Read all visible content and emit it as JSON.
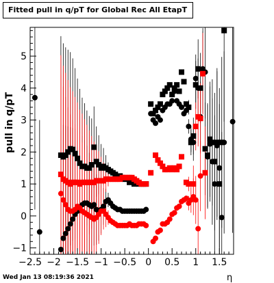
{
  "title": "Fitted pull in q/pT for Global Rec All EtapT",
  "ylabel": "pull in q/pT",
  "xlabel": "η",
  "timestamp": "Wed Jan 13 08:19:36 2021",
  "chart_data": {
    "type": "scatter",
    "xlim": [
      -2.5,
      1.8
    ],
    "ylim": [
      -1.2,
      5.9
    ],
    "grid": false,
    "xticks": [
      -2.5,
      -2,
      -1.5,
      -1,
      -0.5,
      0,
      0.5,
      1,
      1.5
    ],
    "xtick_labels": [
      "−2.5",
      "−2",
      "−1.5",
      "−1",
      "−0.5",
      "0",
      "0.5",
      "1",
      "1.5"
    ],
    "yticks": [
      -1,
      0,
      1,
      2,
      3,
      4,
      5
    ],
    "ytick_labels": [
      "−1",
      "0",
      "1",
      "2",
      "3",
      "4",
      "5"
    ],
    "series": [
      {
        "marker": "square",
        "color": "#000000",
        "points": [
          [
            -1.85,
            1.9
          ],
          [
            -1.8,
            1.85
          ],
          [
            -1.75,
            1.9
          ],
          [
            -1.7,
            2.0
          ],
          [
            -1.65,
            2.1
          ],
          [
            -1.6,
            2.08
          ],
          [
            -1.55,
            1.95
          ],
          [
            -1.5,
            1.8
          ],
          [
            -1.45,
            1.65
          ],
          [
            -1.4,
            1.55
          ],
          [
            -1.35,
            1.55
          ],
          [
            -1.3,
            1.5
          ],
          [
            -1.25,
            1.5
          ],
          [
            -1.2,
            1.6
          ],
          [
            -1.15,
            2.15
          ],
          [
            -1.1,
            1.7
          ],
          [
            -1.05,
            1.6
          ],
          [
            -1.0,
            1.5
          ],
          [
            -0.95,
            1.55
          ],
          [
            -0.9,
            1.5
          ],
          [
            -0.85,
            1.45
          ],
          [
            -0.8,
            1.4
          ],
          [
            -0.75,
            1.35
          ],
          [
            -0.7,
            1.3
          ],
          [
            -0.65,
            1.2
          ],
          [
            -0.6,
            1.25
          ],
          [
            -0.55,
            1.2
          ],
          [
            -0.5,
            1.15
          ],
          [
            -0.45,
            1.15
          ],
          [
            -0.4,
            1.05
          ],
          [
            -0.35,
            1.1
          ],
          [
            -0.3,
            1.0
          ],
          [
            -0.25,
            1.05
          ],
          [
            -0.2,
            1.0
          ],
          [
            -0.15,
            1.0
          ],
          [
            -0.1,
            1.0
          ],
          [
            -0.05,
            1.0
          ],
          [
            0.05,
            3.5
          ],
          [
            0.1,
            3.2
          ],
          [
            0.15,
            3.3
          ],
          [
            0.2,
            3.4
          ],
          [
            0.25,
            3.5
          ],
          [
            0.3,
            3.8
          ],
          [
            0.35,
            3.9
          ],
          [
            0.4,
            4.0
          ],
          [
            0.45,
            4.1
          ],
          [
            0.5,
            3.8
          ],
          [
            0.55,
            4.0
          ],
          [
            0.6,
            4.1
          ],
          [
            0.65,
            3.9
          ],
          [
            0.7,
            4.5
          ],
          [
            0.75,
            4.2
          ],
          [
            0.8,
            3.5
          ],
          [
            0.85,
            3.4
          ],
          [
            0.9,
            2.3
          ],
          [
            0.95,
            2.5
          ],
          [
            1.0,
            4.1
          ],
          [
            1.05,
            4.6
          ],
          [
            1.1,
            4.0
          ],
          [
            1.15,
            4.5
          ],
          [
            1.2,
            2.1
          ],
          [
            1.25,
            1.9
          ],
          [
            1.3,
            2.4
          ],
          [
            1.35,
            2.3
          ],
          [
            1.4,
            1.7
          ],
          [
            1.45,
            2.3
          ],
          [
            1.5,
            1.0
          ],
          [
            1.55,
            2.3
          ],
          [
            1.6,
            5.8
          ]
        ]
      },
      {
        "marker": "circle",
        "color": "#000000",
        "points": [
          [
            -2.4,
            3.7
          ],
          [
            -2.3,
            -0.5
          ],
          [
            -1.85,
            -1.05
          ],
          [
            -1.8,
            -0.7
          ],
          [
            -1.75,
            -0.55
          ],
          [
            -1.7,
            -0.4
          ],
          [
            -1.65,
            -0.25
          ],
          [
            -1.6,
            -0.1
          ],
          [
            -1.55,
            0.05
          ],
          [
            -1.5,
            0.15
          ],
          [
            -1.45,
            0.25
          ],
          [
            -1.4,
            0.35
          ],
          [
            -1.35,
            0.4
          ],
          [
            -1.3,
            0.4
          ],
          [
            -1.25,
            0.35
          ],
          [
            -1.2,
            0.3
          ],
          [
            -1.15,
            0.35
          ],
          [
            -1.1,
            0.2
          ],
          [
            -1.05,
            0.15
          ],
          [
            -1.0,
            0.2
          ],
          [
            -0.95,
            0.3
          ],
          [
            -0.9,
            0.45
          ],
          [
            -0.85,
            0.5
          ],
          [
            -0.8,
            0.4
          ],
          [
            -0.75,
            0.3
          ],
          [
            -0.7,
            0.25
          ],
          [
            -0.65,
            0.2
          ],
          [
            -0.6,
            0.2
          ],
          [
            -0.55,
            0.15
          ],
          [
            -0.5,
            0.15
          ],
          [
            -0.45,
            0.15
          ],
          [
            -0.4,
            0.15
          ],
          [
            -0.35,
            0.15
          ],
          [
            -0.3,
            0.15
          ],
          [
            -0.25,
            0.15
          ],
          [
            -0.2,
            0.15
          ],
          [
            -0.15,
            0.15
          ],
          [
            -0.1,
            0.15
          ],
          [
            -0.05,
            0.2
          ],
          [
            0.05,
            3.2
          ],
          [
            0.1,
            3.0
          ],
          [
            0.15,
            2.9
          ],
          [
            0.2,
            3.1
          ],
          [
            0.25,
            3.0
          ],
          [
            0.3,
            3.3
          ],
          [
            0.35,
            3.4
          ],
          [
            0.4,
            3.5
          ],
          [
            0.45,
            3.5
          ],
          [
            0.5,
            3.6
          ],
          [
            0.55,
            3.9
          ],
          [
            0.6,
            3.6
          ],
          [
            0.65,
            3.5
          ],
          [
            0.7,
            3.4
          ],
          [
            0.75,
            3.2
          ],
          [
            0.8,
            3.3
          ],
          [
            0.85,
            2.8
          ],
          [
            0.9,
            2.4
          ],
          [
            0.95,
            2.3
          ],
          [
            1.0,
            4.3
          ],
          [
            1.05,
            4.0
          ],
          [
            1.1,
            3.1
          ],
          [
            1.15,
            4.6
          ],
          [
            1.2,
            4.5
          ],
          [
            1.25,
            1.85
          ],
          [
            1.3,
            2.25
          ],
          [
            1.35,
            1.7
          ],
          [
            1.4,
            1.0
          ],
          [
            1.45,
            2.2
          ],
          [
            1.5,
            1.5
          ],
          [
            1.55,
            -0.05
          ],
          [
            1.6,
            2.3
          ],
          [
            1.78,
            2.95
          ]
        ]
      },
      {
        "marker": "square",
        "color": "#ff0000",
        "points": [
          [
            -1.85,
            1.3
          ],
          [
            -1.8,
            1.15
          ],
          [
            -1.75,
            1.1
          ],
          [
            -1.7,
            1.05
          ],
          [
            -1.65,
            1.0
          ],
          [
            -1.6,
            1.05
          ],
          [
            -1.55,
            1.05
          ],
          [
            -1.5,
            1.05
          ],
          [
            -1.45,
            1.0
          ],
          [
            -1.4,
            1.05
          ],
          [
            -1.35,
            1.05
          ],
          [
            -1.3,
            1.05
          ],
          [
            -1.25,
            1.05
          ],
          [
            -1.2,
            1.05
          ],
          [
            -1.15,
            1.05
          ],
          [
            -1.1,
            1.1
          ],
          [
            -1.05,
            1.1
          ],
          [
            -1.0,
            1.1
          ],
          [
            -0.95,
            1.1
          ],
          [
            -0.9,
            1.15
          ],
          [
            -0.85,
            1.15
          ],
          [
            -0.8,
            1.15
          ],
          [
            -0.75,
            1.15
          ],
          [
            -0.7,
            1.15
          ],
          [
            -0.65,
            1.15
          ],
          [
            -0.6,
            1.15
          ],
          [
            -0.55,
            1.2
          ],
          [
            -0.5,
            1.2
          ],
          [
            -0.45,
            1.2
          ],
          [
            -0.4,
            1.2
          ],
          [
            -0.35,
            1.2
          ],
          [
            -0.3,
            1.15
          ],
          [
            -0.25,
            1.1
          ],
          [
            -0.2,
            1.05
          ],
          [
            -0.15,
            1.0
          ],
          [
            -0.1,
            1.0
          ],
          [
            -0.05,
            1.0
          ],
          [
            0.05,
            1.35
          ],
          [
            0.15,
            1.9
          ],
          [
            0.2,
            1.75
          ],
          [
            0.25,
            1.65
          ],
          [
            0.3,
            1.55
          ],
          [
            0.35,
            1.45
          ],
          [
            0.4,
            1.45
          ],
          [
            0.45,
            1.5
          ],
          [
            0.5,
            1.45
          ],
          [
            0.55,
            1.5
          ],
          [
            0.6,
            1.45
          ],
          [
            0.65,
            1.55
          ],
          [
            0.7,
            1.85
          ],
          [
            0.8,
            1.05
          ],
          [
            0.85,
            1.0
          ],
          [
            0.95,
            1.0
          ],
          [
            1.0,
            2.8
          ],
          [
            1.05,
            3.1
          ],
          [
            1.1,
            3.05
          ],
          [
            1.15,
            4.45
          ],
          [
            1.2,
            1.35
          ]
        ]
      },
      {
        "marker": "circle",
        "color": "#ff0000",
        "points": [
          [
            -1.85,
            0.7
          ],
          [
            -1.8,
            0.5
          ],
          [
            -1.75,
            0.35
          ],
          [
            -1.7,
            0.2
          ],
          [
            -1.65,
            0.15
          ],
          [
            -1.6,
            0.15
          ],
          [
            -1.55,
            0.2
          ],
          [
            -1.5,
            0.3
          ],
          [
            -1.45,
            0.25
          ],
          [
            -1.4,
            0.15
          ],
          [
            -1.35,
            0.1
          ],
          [
            -1.3,
            0.05
          ],
          [
            -1.25,
            0.0
          ],
          [
            -1.2,
            -0.05
          ],
          [
            -1.15,
            -0.1
          ],
          [
            -1.1,
            -0.05
          ],
          [
            -1.05,
            0.05
          ],
          [
            -1.0,
            0.15
          ],
          [
            -0.95,
            0.15
          ],
          [
            -0.9,
            0.05
          ],
          [
            -0.85,
            -0.05
          ],
          [
            -0.8,
            -0.15
          ],
          [
            -0.75,
            -0.2
          ],
          [
            -0.7,
            -0.25
          ],
          [
            -0.65,
            -0.3
          ],
          [
            -0.6,
            -0.3
          ],
          [
            -0.55,
            -0.3
          ],
          [
            -0.5,
            -0.3
          ],
          [
            -0.45,
            -0.3
          ],
          [
            -0.4,
            -0.25
          ],
          [
            -0.35,
            -0.3
          ],
          [
            -0.3,
            -0.3
          ],
          [
            -0.25,
            -0.3
          ],
          [
            -0.2,
            -0.25
          ],
          [
            -0.15,
            -0.25
          ],
          [
            -0.1,
            -0.25
          ],
          [
            -0.05,
            -0.3
          ],
          [
            0.1,
            -0.8
          ],
          [
            0.15,
            -0.7
          ],
          [
            0.2,
            -0.5
          ],
          [
            0.25,
            -0.45
          ],
          [
            0.3,
            -0.25
          ],
          [
            0.35,
            -0.25
          ],
          [
            0.4,
            -0.2
          ],
          [
            0.45,
            -0.1
          ],
          [
            0.5,
            0.05
          ],
          [
            0.55,
            0.1
          ],
          [
            0.6,
            0.25
          ],
          [
            0.65,
            0.3
          ],
          [
            0.7,
            0.45
          ],
          [
            0.75,
            0.5
          ],
          [
            0.8,
            0.55
          ],
          [
            0.85,
            0.4
          ],
          [
            0.9,
            0.5
          ],
          [
            0.95,
            0.6
          ],
          [
            1.0,
            0.5
          ],
          [
            1.05,
            -0.4
          ],
          [
            1.1,
            1.25
          ]
        ]
      }
    ]
  }
}
